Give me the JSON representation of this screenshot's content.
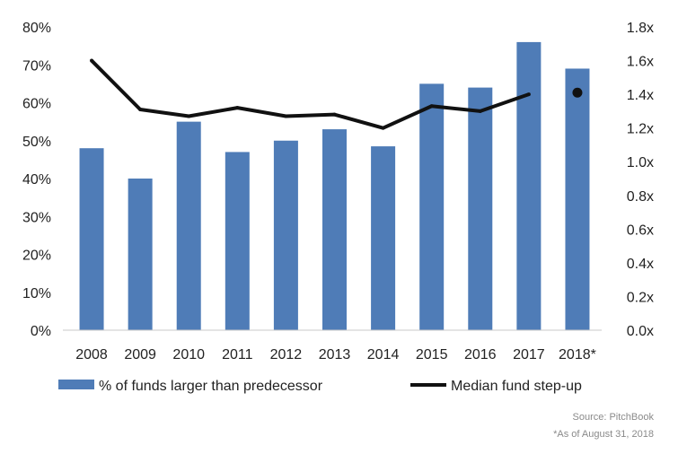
{
  "chart_data": {
    "type": "bar",
    "categories": [
      "2008",
      "2009",
      "2010",
      "2011",
      "2012",
      "2013",
      "2014",
      "2015",
      "2016",
      "2017",
      "2018*"
    ],
    "series": [
      {
        "name": "% of funds larger than predecessor",
        "kind": "bar",
        "axis": "left",
        "color": "#4f7cb7",
        "values": [
          48,
          40,
          55,
          47,
          50,
          53,
          48.5,
          65,
          64,
          76,
          69
        ]
      },
      {
        "name": "Median fund step-up",
        "kind": "line",
        "axis": "right",
        "color": "#111111",
        "values": [
          1.6,
          1.31,
          1.27,
          1.32,
          1.27,
          1.28,
          1.2,
          1.33,
          1.3,
          1.4,
          null
        ],
        "marker_point": {
          "category": "2018*",
          "value": 1.41
        }
      }
    ],
    "left_axis": {
      "ylim": [
        0,
        80
      ],
      "ticks": [
        0,
        10,
        20,
        30,
        40,
        50,
        60,
        70,
        80
      ],
      "tick_labels": [
        "0%",
        "10%",
        "20%",
        "30%",
        "40%",
        "50%",
        "60%",
        "70%",
        "80%"
      ]
    },
    "right_axis": {
      "ylim": [
        0,
        1.8
      ],
      "ticks": [
        0,
        0.2,
        0.4,
        0.6,
        0.8,
        1.0,
        1.2,
        1.4,
        1.6,
        1.8
      ],
      "tick_labels": [
        "0.0x",
        "0.2x",
        "0.4x",
        "0.6x",
        "0.8x",
        "1.0x",
        "1.2x",
        "1.4x",
        "1.6x",
        "1.8x"
      ]
    },
    "grid": false,
    "legend_position": "bottom",
    "legend": [
      "% of funds larger than predecessor",
      "Median fund step-up"
    ],
    "source": "Source: PitchBook",
    "footnote": "*As of August 31, 2018"
  }
}
